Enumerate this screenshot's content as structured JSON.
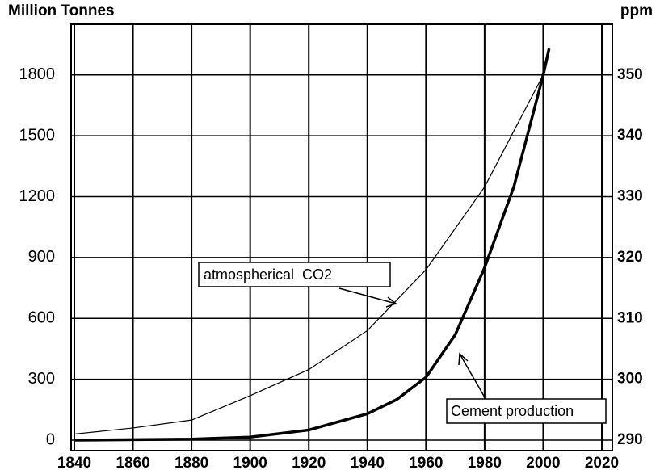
{
  "chart_data": {
    "type": "line",
    "y_label": "Million Tonnes",
    "y2_label": "ppm",
    "xlim": [
      1840,
      2020
    ],
    "xticks": [
      1840,
      1860,
      1880,
      1900,
      1920,
      1940,
      1960,
      1980,
      2000,
      2020
    ],
    "ylim": [
      0,
      2050
    ],
    "yticks": [
      0,
      300,
      600,
      900,
      1200,
      1500,
      1800
    ],
    "y2lim": [
      290,
      358.33
    ],
    "y2ticks": [
      290,
      300,
      310,
      320,
      330,
      340,
      350
    ],
    "grid": true,
    "series": [
      {
        "name": "Cement production",
        "color": "#000000",
        "x": [
          1840,
          1880,
          1900,
          1920,
          1940,
          1950,
          1960,
          1970,
          1980,
          1990,
          2000,
          2002
        ],
        "values": [
          0,
          5,
          15,
          50,
          130,
          200,
          310,
          520,
          850,
          1250,
          1800,
          1930
        ]
      },
      {
        "name": "atmospherical  CO2",
        "color": "#000000",
        "axis": "y2",
        "x": [
          1840,
          1860,
          1880,
          1900,
          1920,
          1940,
          1960,
          1980,
          2000
        ],
        "values": [
          291,
          292,
          293.3,
          297.3,
          301.6,
          308,
          318,
          331.6,
          350
        ]
      }
    ]
  }
}
